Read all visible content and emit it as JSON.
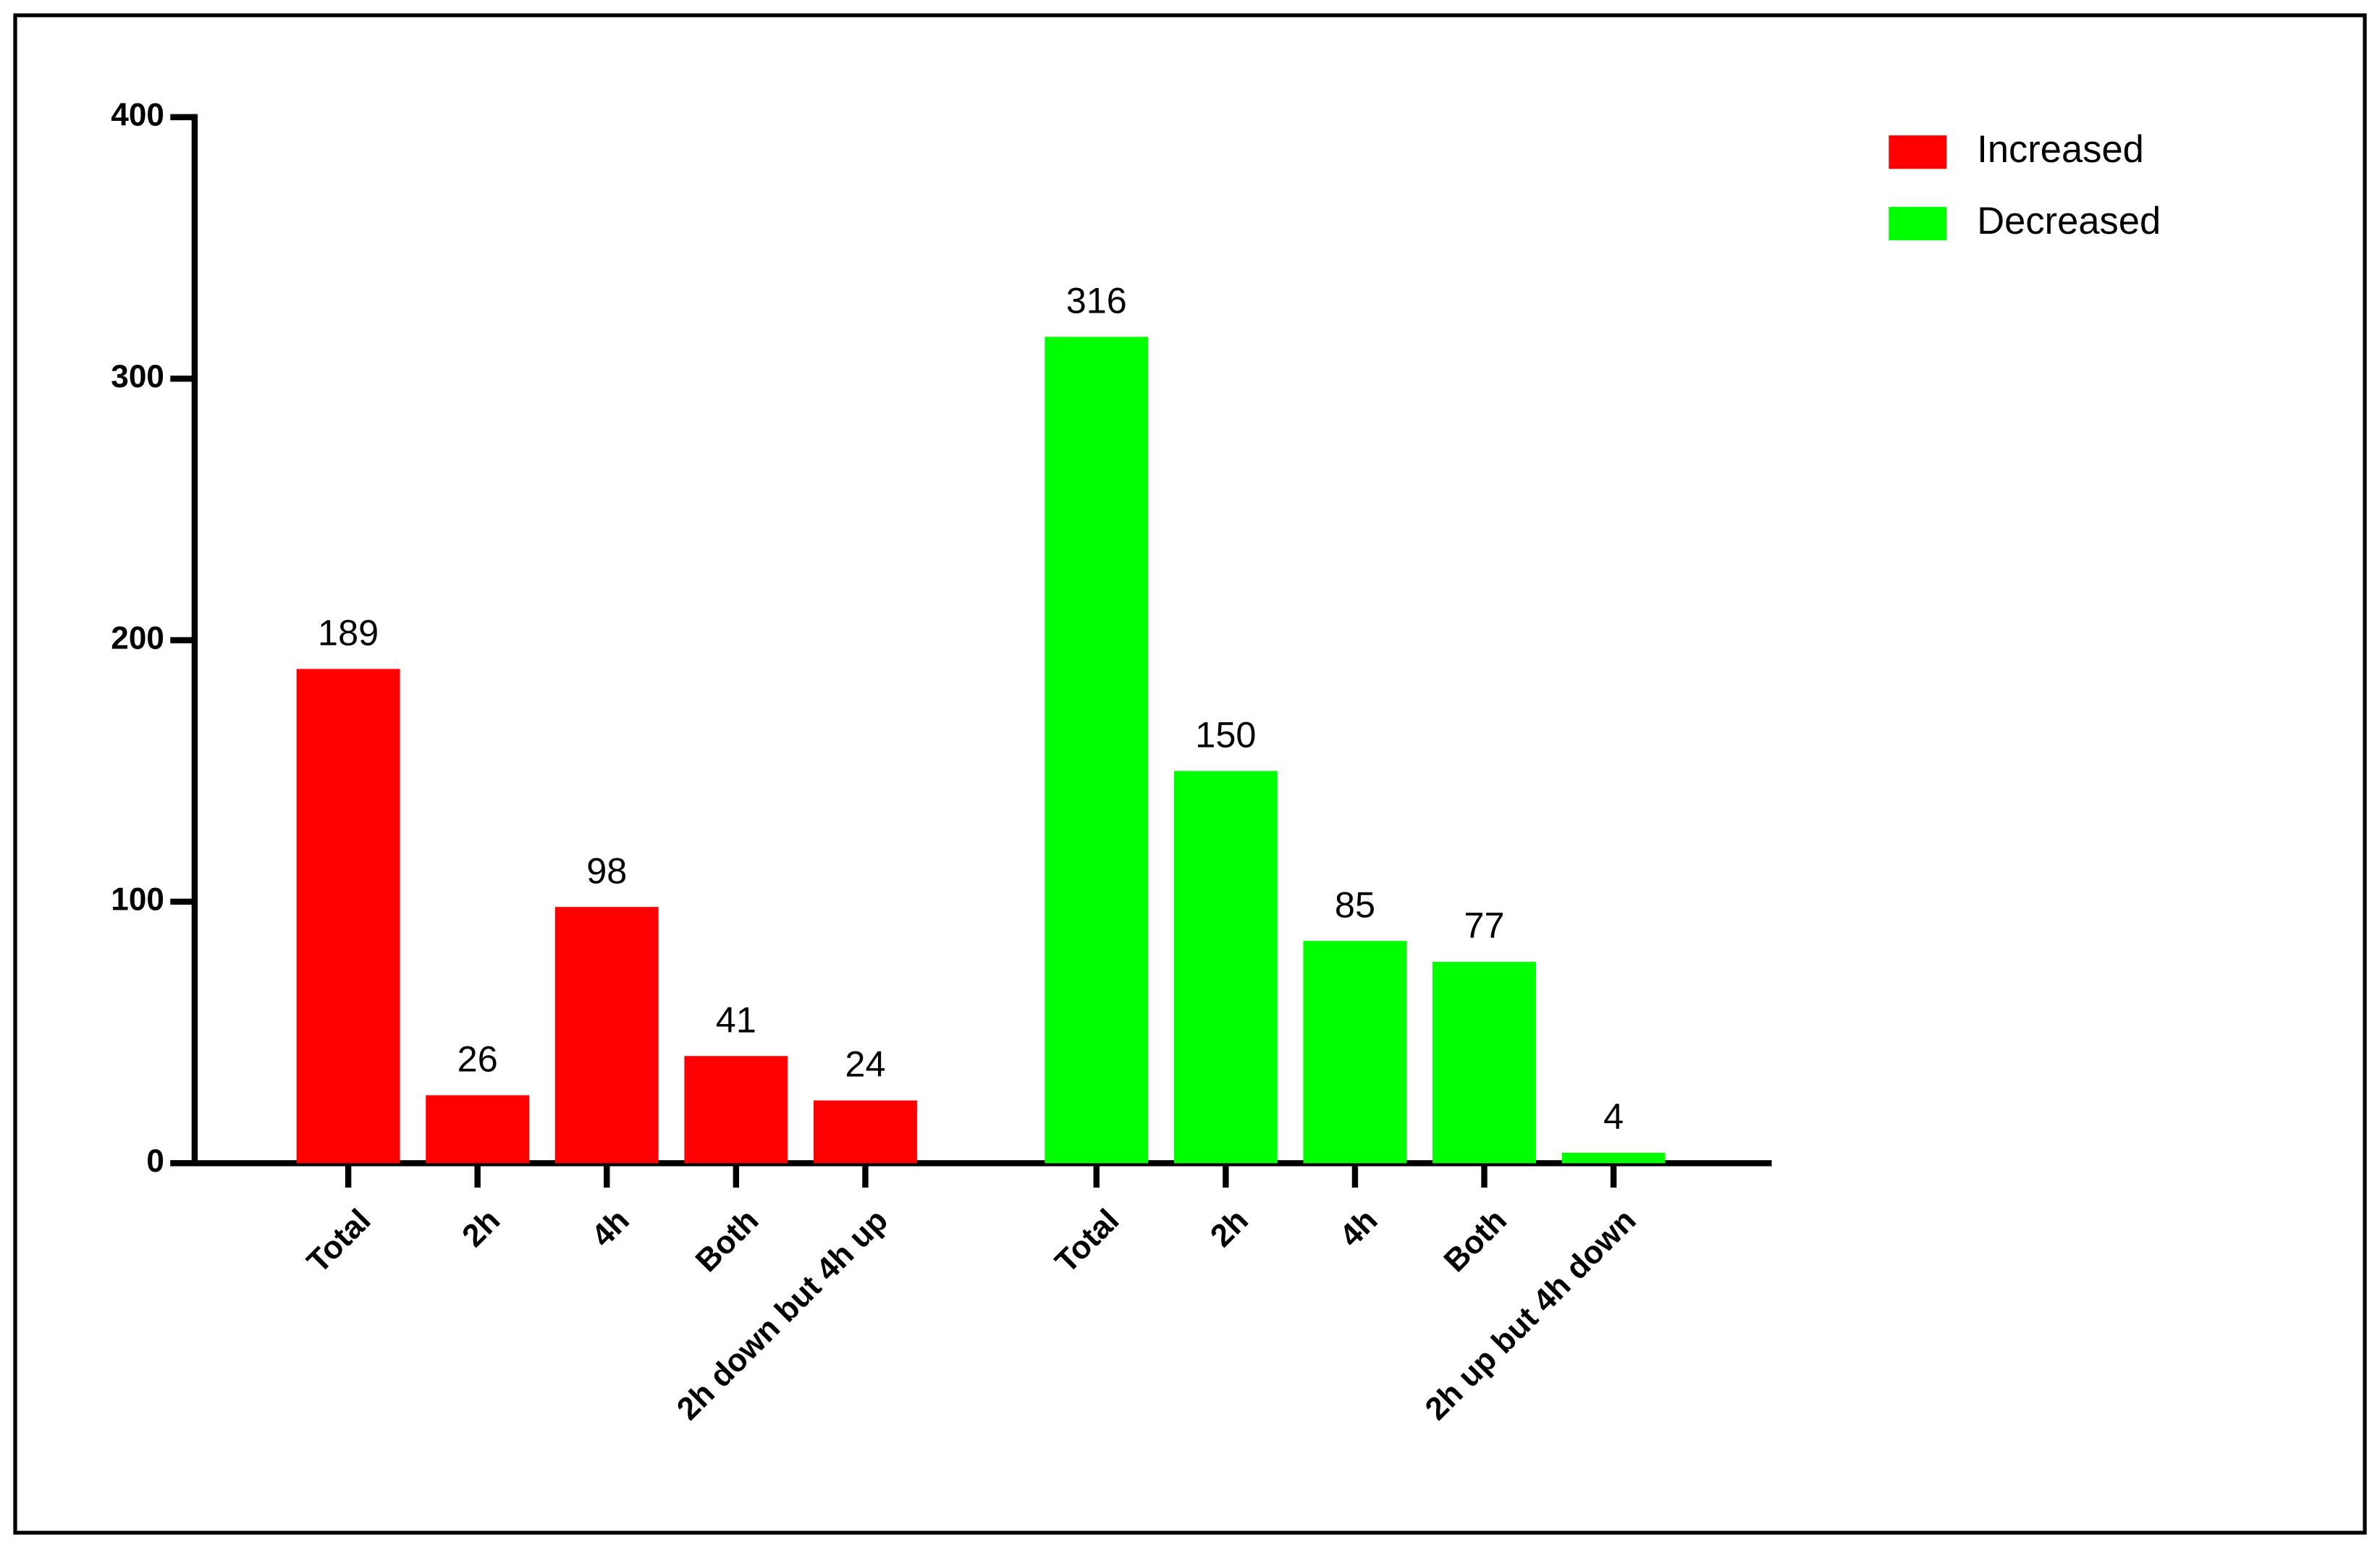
{
  "chart_data": {
    "type": "bar",
    "categories": [
      "Total",
      "2h",
      "4h",
      "Both",
      "2h down but 4h up",
      "Total",
      "2h",
      "4h",
      "Both",
      "2h up but 4h down"
    ],
    "series": [
      {
        "name": "Increased",
        "color": "#ff0000",
        "values": [
          189,
          26,
          98,
          41,
          24,
          null,
          null,
          null,
          null,
          null
        ]
      },
      {
        "name": "Decreased",
        "color": "#00ff00",
        "values": [
          null,
          null,
          null,
          null,
          null,
          316,
          150,
          85,
          77,
          4
        ]
      }
    ],
    "ylim": [
      0,
      400
    ],
    "yticks": [
      0,
      100,
      200,
      300,
      400
    ],
    "grid": false,
    "legend": "top-right"
  }
}
